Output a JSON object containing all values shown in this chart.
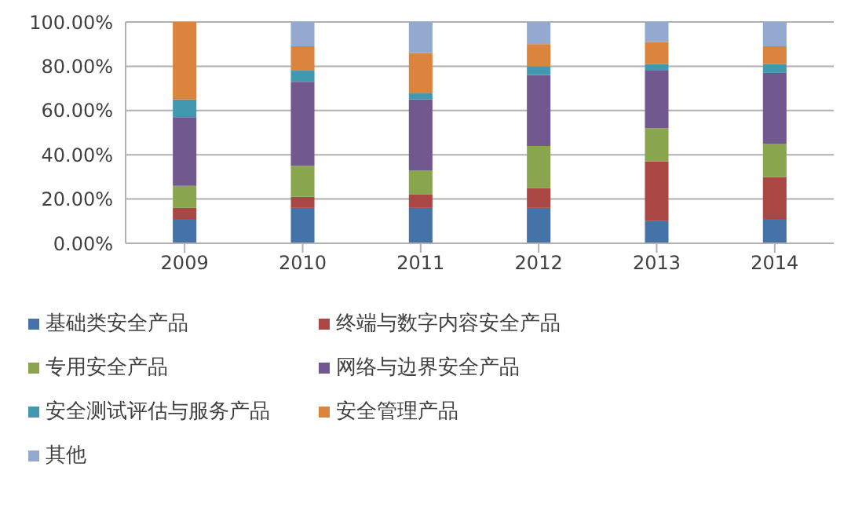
{
  "chart_data": {
    "type": "bar",
    "stacked": true,
    "categories": [
      "2009",
      "2010",
      "2011",
      "2012",
      "2013",
      "2014"
    ],
    "series": [
      {
        "name": "基础类安全产品",
        "color": "#4572a7",
        "values": [
          11,
          16,
          16,
          16,
          10,
          11
        ]
      },
      {
        "name": "终端与数字内容安全产品",
        "color": "#aa4643",
        "values": [
          5,
          5,
          6,
          9,
          27,
          19
        ]
      },
      {
        "name": "专用安全产品",
        "color": "#89a54e",
        "values": [
          10,
          14,
          11,
          19,
          15,
          15
        ]
      },
      {
        "name": "网络与边界安全产品",
        "color": "#71588f",
        "values": [
          31,
          38,
          32,
          32,
          26,
          32
        ]
      },
      {
        "name": "安全测试评估与服务产品",
        "color": "#4198af",
        "values": [
          8,
          5,
          3,
          4,
          3,
          4
        ]
      },
      {
        "name": "安全管理产品",
        "color": "#db843d",
        "values": [
          35,
          11,
          18,
          10,
          10,
          8
        ]
      },
      {
        "name": "其他",
        "color": "#93a9cf",
        "values": [
          0,
          11,
          14,
          10,
          9,
          11
        ]
      }
    ],
    "ylim": [
      0,
      100
    ],
    "yticks": [
      {
        "value": 0,
        "label": "0.00%"
      },
      {
        "value": 20,
        "label": "20.00%"
      },
      {
        "value": 40,
        "label": "40.00%"
      },
      {
        "value": 60,
        "label": "60.00%"
      },
      {
        "value": 80,
        "label": "80.00%"
      },
      {
        "value": 100,
        "label": "100.00%"
      }
    ],
    "grid": "y",
    "legend": "bottom"
  }
}
